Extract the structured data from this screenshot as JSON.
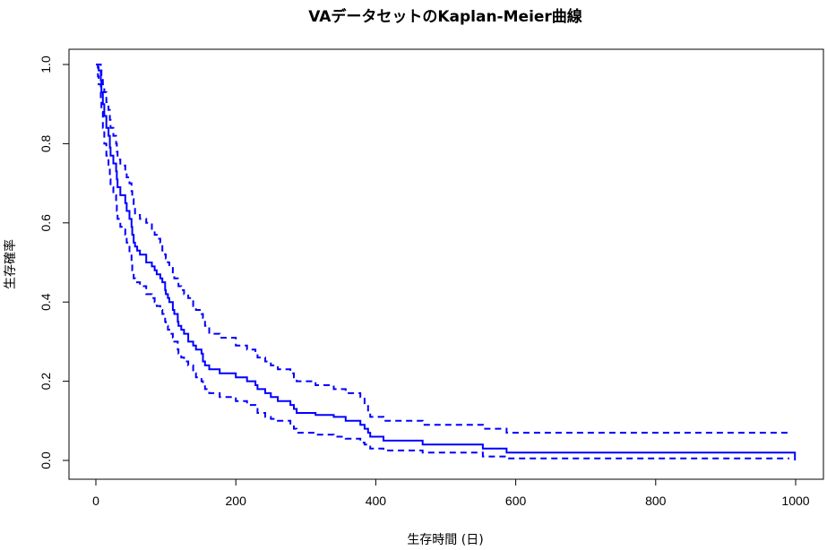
{
  "chart_data": {
    "type": "line",
    "title": "VAデータセットのKaplan-Meier曲線",
    "xlabel": "生存時間 (日)",
    "ylabel": "生存確率",
    "xlim": [
      0,
      1000
    ],
    "ylim": [
      0,
      1.0
    ],
    "x_ticks": [
      0,
      200,
      400,
      600,
      800,
      1000
    ],
    "y_ticks": [
      0.0,
      0.2,
      0.4,
      0.6,
      0.8,
      1.0
    ],
    "x_tick_labels": [
      "0",
      "200",
      "400",
      "600",
      "800",
      "1000"
    ],
    "y_tick_labels": [
      "0.0",
      "0.2",
      "0.4",
      "0.6",
      "0.8",
      "1.0"
    ],
    "grid": false,
    "color": "#0000ff",
    "series": [
      {
        "role": "estimate",
        "style": "solid",
        "points": [
          [
            0,
            1.0
          ],
          [
            3,
            0.993
          ],
          [
            4,
            0.985
          ],
          [
            7,
            0.96
          ],
          [
            8,
            0.93
          ],
          [
            10,
            0.9
          ],
          [
            12,
            0.87
          ],
          [
            15,
            0.84
          ],
          [
            18,
            0.82
          ],
          [
            20,
            0.79
          ],
          [
            21,
            0.77
          ],
          [
            25,
            0.75
          ],
          [
            29,
            0.73
          ],
          [
            30,
            0.71
          ],
          [
            31,
            0.69
          ],
          [
            35,
            0.67
          ],
          [
            42,
            0.65
          ],
          [
            44,
            0.63
          ],
          [
            48,
            0.61
          ],
          [
            51,
            0.59
          ],
          [
            52,
            0.57
          ],
          [
            54,
            0.55
          ],
          [
            56,
            0.54
          ],
          [
            59,
            0.53
          ],
          [
            63,
            0.52
          ],
          [
            72,
            0.5
          ],
          [
            80,
            0.49
          ],
          [
            84,
            0.48
          ],
          [
            87,
            0.47
          ],
          [
            92,
            0.46
          ],
          [
            95,
            0.45
          ],
          [
            99,
            0.43
          ],
          [
            100,
            0.42
          ],
          [
            103,
            0.41
          ],
          [
            105,
            0.4
          ],
          [
            110,
            0.38
          ],
          [
            112,
            0.37
          ],
          [
            117,
            0.35
          ],
          [
            118,
            0.34
          ],
          [
            122,
            0.33
          ],
          [
            126,
            0.32
          ],
          [
            132,
            0.3
          ],
          [
            139,
            0.29
          ],
          [
            143,
            0.28
          ],
          [
            151,
            0.27
          ],
          [
            153,
            0.25
          ],
          [
            156,
            0.24
          ],
          [
            162,
            0.23
          ],
          [
            177,
            0.22
          ],
          [
            200,
            0.21
          ],
          [
            216,
            0.2
          ],
          [
            228,
            0.19
          ],
          [
            231,
            0.18
          ],
          [
            242,
            0.17
          ],
          [
            250,
            0.16
          ],
          [
            260,
            0.15
          ],
          [
            278,
            0.14
          ],
          [
            283,
            0.13
          ],
          [
            287,
            0.12
          ],
          [
            314,
            0.115
          ],
          [
            340,
            0.11
          ],
          [
            357,
            0.1
          ],
          [
            378,
            0.09
          ],
          [
            384,
            0.08
          ],
          [
            389,
            0.07
          ],
          [
            392,
            0.06
          ],
          [
            411,
            0.05
          ],
          [
            467,
            0.04
          ],
          [
            553,
            0.03
          ],
          [
            587,
            0.02
          ],
          [
            991,
            0.02
          ],
          [
            999,
            0.0
          ]
        ]
      },
      {
        "role": "upper-confidence",
        "style": "dashed",
        "points": [
          [
            0,
            1.0
          ],
          [
            4,
            1.0
          ],
          [
            7,
            0.985
          ],
          [
            8,
            0.965
          ],
          [
            10,
            0.95
          ],
          [
            12,
            0.93
          ],
          [
            15,
            0.905
          ],
          [
            18,
            0.885
          ],
          [
            20,
            0.86
          ],
          [
            21,
            0.84
          ],
          [
            25,
            0.82
          ],
          [
            29,
            0.8
          ],
          [
            30,
            0.78
          ],
          [
            31,
            0.76
          ],
          [
            35,
            0.745
          ],
          [
            42,
            0.73
          ],
          [
            44,
            0.715
          ],
          [
            48,
            0.7
          ],
          [
            51,
            0.68
          ],
          [
            52,
            0.66
          ],
          [
            54,
            0.64
          ],
          [
            56,
            0.62
          ],
          [
            63,
            0.61
          ],
          [
            72,
            0.6
          ],
          [
            80,
            0.58
          ],
          [
            84,
            0.57
          ],
          [
            87,
            0.56
          ],
          [
            92,
            0.55
          ],
          [
            95,
            0.53
          ],
          [
            99,
            0.52
          ],
          [
            100,
            0.51
          ],
          [
            103,
            0.5
          ],
          [
            105,
            0.49
          ],
          [
            110,
            0.47
          ],
          [
            112,
            0.46
          ],
          [
            117,
            0.45
          ],
          [
            118,
            0.44
          ],
          [
            122,
            0.43
          ],
          [
            126,
            0.42
          ],
          [
            132,
            0.41
          ],
          [
            139,
            0.39
          ],
          [
            143,
            0.38
          ],
          [
            151,
            0.37
          ],
          [
            153,
            0.36
          ],
          [
            156,
            0.34
          ],
          [
            162,
            0.32
          ],
          [
            177,
            0.31
          ],
          [
            200,
            0.29
          ],
          [
            216,
            0.28
          ],
          [
            228,
            0.27
          ],
          [
            231,
            0.26
          ],
          [
            242,
            0.25
          ],
          [
            250,
            0.24
          ],
          [
            260,
            0.23
          ],
          [
            278,
            0.22
          ],
          [
            283,
            0.21
          ],
          [
            287,
            0.2
          ],
          [
            314,
            0.19
          ],
          [
            340,
            0.18
          ],
          [
            357,
            0.17
          ],
          [
            378,
            0.16
          ],
          [
            384,
            0.14
          ],
          [
            389,
            0.12
          ],
          [
            392,
            0.11
          ],
          [
            411,
            0.1
          ],
          [
            467,
            0.09
          ],
          [
            553,
            0.08
          ],
          [
            587,
            0.07
          ],
          [
            991,
            0.07
          ]
        ]
      },
      {
        "role": "lower-confidence",
        "style": "dashed",
        "points": [
          [
            0,
            1.0
          ],
          [
            3,
            0.97
          ],
          [
            4,
            0.95
          ],
          [
            7,
            0.91
          ],
          [
            8,
            0.88
          ],
          [
            10,
            0.84
          ],
          [
            12,
            0.8
          ],
          [
            15,
            0.77
          ],
          [
            18,
            0.74
          ],
          [
            20,
            0.71
          ],
          [
            21,
            0.69
          ],
          [
            25,
            0.67
          ],
          [
            29,
            0.65
          ],
          [
            30,
            0.63
          ],
          [
            31,
            0.61
          ],
          [
            35,
            0.59
          ],
          [
            42,
            0.57
          ],
          [
            44,
            0.55
          ],
          [
            48,
            0.52
          ],
          [
            51,
            0.5
          ],
          [
            52,
            0.48
          ],
          [
            54,
            0.46
          ],
          [
            56,
            0.45
          ],
          [
            63,
            0.44
          ],
          [
            72,
            0.42
          ],
          [
            80,
            0.41
          ],
          [
            84,
            0.4
          ],
          [
            87,
            0.39
          ],
          [
            92,
            0.38
          ],
          [
            95,
            0.37
          ],
          [
            99,
            0.35
          ],
          [
            100,
            0.34
          ],
          [
            103,
            0.33
          ],
          [
            105,
            0.32
          ],
          [
            110,
            0.31
          ],
          [
            112,
            0.3
          ],
          [
            117,
            0.28
          ],
          [
            118,
            0.27
          ],
          [
            122,
            0.26
          ],
          [
            126,
            0.25
          ],
          [
            132,
            0.24
          ],
          [
            139,
            0.22
          ],
          [
            143,
            0.21
          ],
          [
            151,
            0.2
          ],
          [
            153,
            0.19
          ],
          [
            156,
            0.18
          ],
          [
            162,
            0.17
          ],
          [
            177,
            0.16
          ],
          [
            200,
            0.15
          ],
          [
            216,
            0.14
          ],
          [
            228,
            0.13
          ],
          [
            231,
            0.12
          ],
          [
            242,
            0.11
          ],
          [
            250,
            0.105
          ],
          [
            260,
            0.1
          ],
          [
            278,
            0.09
          ],
          [
            283,
            0.08
          ],
          [
            287,
            0.07
          ],
          [
            314,
            0.065
          ],
          [
            340,
            0.06
          ],
          [
            357,
            0.055
          ],
          [
            378,
            0.045
          ],
          [
            384,
            0.04
          ],
          [
            389,
            0.035
          ],
          [
            392,
            0.03
          ],
          [
            411,
            0.025
          ],
          [
            467,
            0.02
          ],
          [
            553,
            0.01
          ],
          [
            587,
            0.005
          ],
          [
            991,
            0.005
          ]
        ]
      }
    ]
  }
}
